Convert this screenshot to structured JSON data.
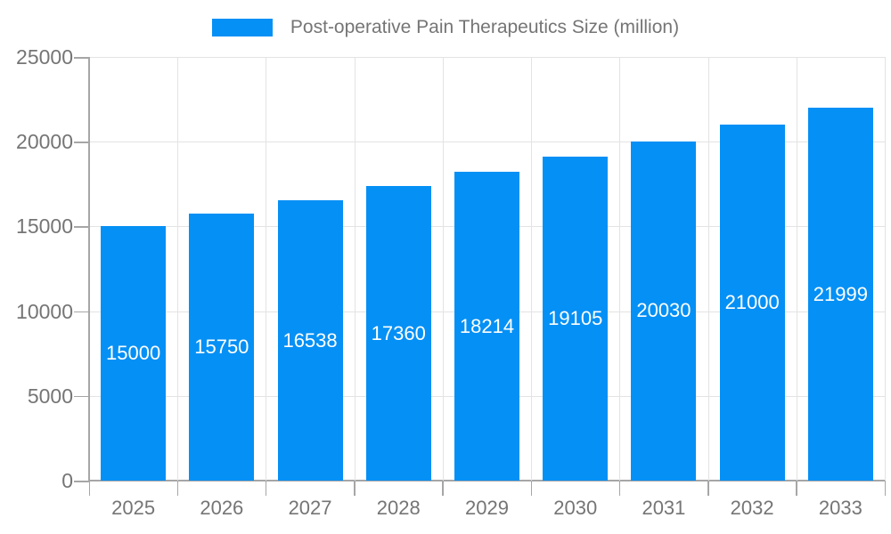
{
  "legend": {
    "label": "Post-operative Pain Therapeutics Size (million)"
  },
  "chart_data": {
    "type": "bar",
    "title": "Post-operative Pain Therapeutics Size (million)",
    "series_name": "Post-operative Pain Therapeutics Size (million)",
    "categories": [
      "2025",
      "2026",
      "2027",
      "2028",
      "2029",
      "2030",
      "2031",
      "2032",
      "2033"
    ],
    "values": [
      15000,
      15750,
      16538,
      17360,
      18214,
      19105,
      20030,
      21000,
      21999
    ],
    "y_ticks": [
      0,
      5000,
      10000,
      15000,
      20000,
      25000
    ],
    "ylim": [
      0,
      25000
    ],
    "xlabel": "",
    "ylabel": "",
    "grid": true,
    "legend_position": "top-center",
    "value_labels": "inside-center",
    "colors": {
      "bar": "#0590f5",
      "value_label": "#ffffff",
      "axis_label": "#757575",
      "grid_line": "#e3e3e3",
      "axis_line": "#a6a6a6",
      "background": "#ffffff"
    }
  }
}
